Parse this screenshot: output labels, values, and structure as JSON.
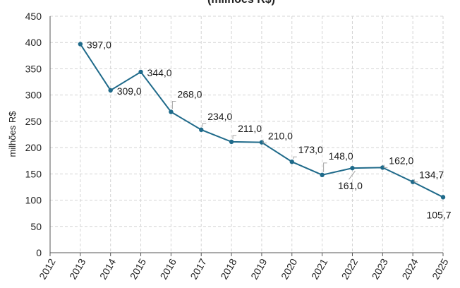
{
  "chart_data": {
    "type": "line",
    "title": "(milhões R$)",
    "xlabel": "",
    "ylabel": "milhões R$",
    "ylim": [
      0,
      450
    ],
    "yticks": [
      0,
      50,
      100,
      150,
      200,
      250,
      300,
      350,
      400,
      450
    ],
    "categories": [
      "2012",
      "2013",
      "2014",
      "2015",
      "2016",
      "2017",
      "2018",
      "2019",
      "2020",
      "2021",
      "2022",
      "2023",
      "2024",
      "2025"
    ],
    "series": [
      {
        "name": "milhões R$",
        "x": [
          "2013",
          "2014",
          "2015",
          "2016",
          "2017",
          "2018",
          "2019",
          "2020",
          "2021",
          "2022",
          "2023",
          "2024",
          "2025"
        ],
        "values": [
          397.0,
          309.0,
          344.0,
          268.0,
          234.0,
          211.0,
          210.0,
          173.0,
          148.0,
          161.0,
          162.0,
          134.7,
          105.7
        ],
        "labels": [
          "397,0",
          "309,0",
          "344,0",
          "268,0",
          "234,0",
          "211,0",
          "210,0",
          "173,0",
          "148,0",
          "161,0",
          "162,0",
          "134,7",
          "105,7"
        ]
      }
    ],
    "grid": true,
    "colors": {
      "line": "#1f6a8a",
      "marker": "#1f6a8a",
      "grid": "#d4d4d4",
      "axis": "#555555",
      "leader": "#a6a6a6"
    }
  }
}
